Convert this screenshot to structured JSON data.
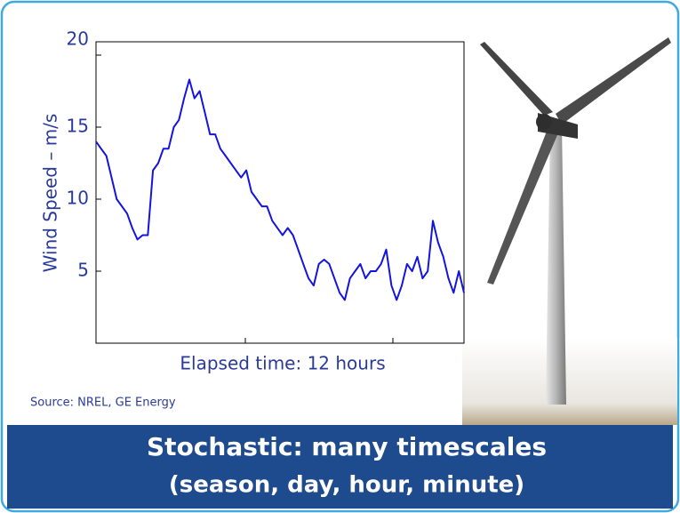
{
  "chart_data": {
    "type": "line",
    "ylabel": "Wind Speed – m/s",
    "xlabel": "Elapsed time: 12 hours",
    "source": "Source: NREL, GE Energy",
    "banner": [
      "Stochastic: many timescales",
      "(season, day, hour, minute)"
    ],
    "color": "#1414e0",
    "values": [
      14,
      13.5,
      13,
      11.5,
      10,
      9.5,
      9,
      8,
      7.2,
      7.5,
      7.5,
      12,
      12.5,
      13.5,
      13.5,
      15,
      15.5,
      17,
      18.3,
      17,
      17.5,
      16,
      14.5,
      14.5,
      13.5,
      13,
      12.5,
      12,
      11.5,
      12,
      10.5,
      10,
      9.5,
      9.5,
      8.5,
      8,
      7.5,
      8,
      7.5,
      6.5,
      5.5,
      4.5,
      4,
      5.5,
      5.8,
      5.5,
      4.5,
      3.5,
      3,
      4.5,
      5,
      5.5,
      4.5,
      5,
      5,
      5.5,
      6.5,
      4,
      3,
      4,
      5.5,
      5,
      6,
      4.5,
      5,
      8.5,
      7,
      6,
      4.5,
      3.5,
      5,
      3.5
    ],
    "ylim": [
      0,
      20
    ],
    "yticks": [
      5,
      10,
      15,
      20
    ]
  }
}
